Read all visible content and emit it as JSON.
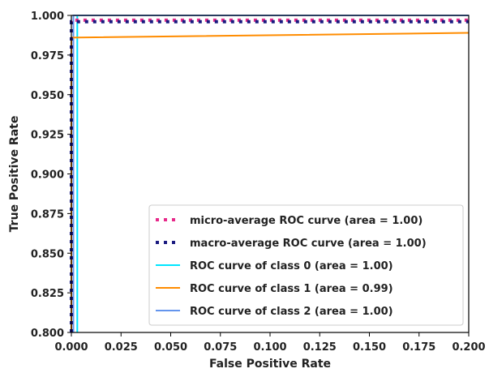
{
  "chart_data": {
    "type": "line",
    "title": "",
    "xlabel": "False Positive Rate",
    "ylabel": "True Positive Rate",
    "xlim": [
      0.0,
      0.2
    ],
    "ylim": [
      0.8,
      1.0
    ],
    "x_ticks": [
      "0.000",
      "0.025",
      "0.050",
      "0.075",
      "0.100",
      "0.125",
      "0.150",
      "0.175",
      "0.200"
    ],
    "y_ticks": [
      "0.800",
      "0.825",
      "0.850",
      "0.875",
      "0.900",
      "0.925",
      "0.950",
      "0.975",
      "1.000"
    ],
    "grid": false,
    "legend_position": "lower-right",
    "series": [
      {
        "name": "micro-average ROC curve (area = 1.00)",
        "color": "#e7298a",
        "style": "dotted",
        "width": 4,
        "points": [
          [
            0.0,
            0.8
          ],
          [
            0.0,
            0.997
          ],
          [
            0.2,
            0.997
          ]
        ]
      },
      {
        "name": "macro-average ROC curve (area = 1.00)",
        "color": "#1a1a80",
        "style": "dotted",
        "width": 4,
        "points": [
          [
            0.0,
            0.8
          ],
          [
            0.0,
            0.996
          ],
          [
            0.2,
            0.996
          ]
        ]
      },
      {
        "name": "ROC curve of class 0 (area = 1.00)",
        "color": "#00e5ff",
        "style": "solid",
        "width": 2,
        "points": [
          [
            0.003,
            0.8
          ],
          [
            0.003,
            1.0
          ],
          [
            0.2,
            1.0
          ]
        ]
      },
      {
        "name": "ROC curve of class 1 (area = 0.99)",
        "color": "#ff8c00",
        "style": "solid",
        "width": 2,
        "points": [
          [
            0.0,
            0.8
          ],
          [
            0.0,
            0.986
          ],
          [
            0.2,
            0.989
          ]
        ]
      },
      {
        "name": "ROC curve of class 2 (area = 1.00)",
        "color": "#6495ed",
        "style": "solid",
        "width": 2,
        "points": [
          [
            0.001,
            0.8
          ],
          [
            0.001,
            1.0
          ],
          [
            0.2,
            1.0
          ]
        ]
      }
    ]
  }
}
